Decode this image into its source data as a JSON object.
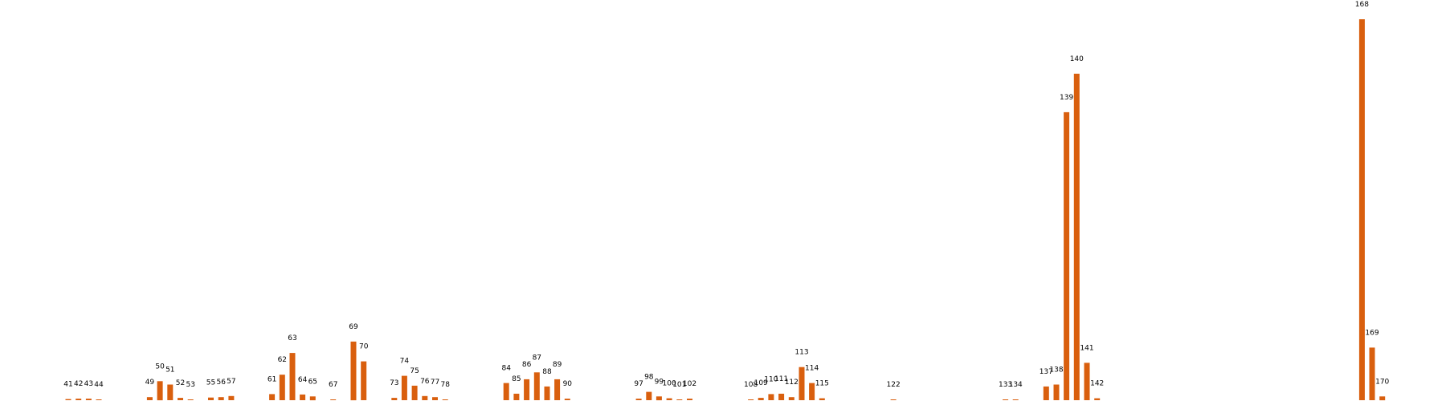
{
  "chart_data": {
    "type": "bar",
    "title": "",
    "xlabel": "",
    "ylabel": "",
    "grid": false,
    "legend": false,
    "bar_color": "#d95f0e",
    "x_range": [
      35,
      176
    ],
    "ylim": [
      0,
      1
    ],
    "categories": [
      41,
      42,
      43,
      44,
      49,
      50,
      51,
      52,
      53,
      55,
      56,
      57,
      61,
      62,
      63,
      64,
      65,
      67,
      69,
      70,
      73,
      74,
      75,
      76,
      77,
      78,
      84,
      85,
      86,
      87,
      88,
      89,
      90,
      97,
      98,
      99,
      100,
      101,
      102,
      108,
      109,
      110,
      111,
      112,
      113,
      114,
      115,
      122,
      133,
      134,
      137,
      138,
      139,
      140,
      141,
      142,
      168,
      169,
      170
    ],
    "labels": [
      "41",
      "42",
      "43",
      "44",
      "49",
      "50",
      "51",
      "52",
      "53",
      "55",
      "56",
      "57",
      "61",
      "62",
      "63",
      "64",
      "65",
      "67",
      "69",
      "70",
      "73",
      "74",
      "75",
      "76",
      "77",
      "78",
      "84",
      "85",
      "86",
      "87",
      "88",
      "89",
      "90",
      "97",
      "98",
      "99",
      "100",
      "101",
      "102",
      "108",
      "109",
      "110",
      "111",
      "112",
      "113",
      "114",
      "115",
      "122",
      "133",
      "134",
      "137",
      "138",
      "139",
      "140",
      "141",
      "142",
      "168",
      "169",
      "170"
    ],
    "values": [
      0.003,
      0.004,
      0.004,
      0.001,
      0.008,
      0.05,
      0.041,
      0.006,
      0.002,
      0.007,
      0.008,
      0.011,
      0.016,
      0.067,
      0.124,
      0.015,
      0.01,
      0.001,
      0.154,
      0.102,
      0.006,
      0.064,
      0.038,
      0.011,
      0.008,
      0.002,
      0.045,
      0.017,
      0.055,
      0.073,
      0.036,
      0.055,
      0.004,
      0.004,
      0.022,
      0.01,
      0.005,
      0.002,
      0.004,
      0.001,
      0.006,
      0.016,
      0.017,
      0.008,
      0.087,
      0.045,
      0.005,
      0.001,
      0.002,
      0.002,
      0.036,
      0.041,
      0.756,
      0.857,
      0.098,
      0.005,
      1.0,
      0.138,
      0.01
    ]
  }
}
